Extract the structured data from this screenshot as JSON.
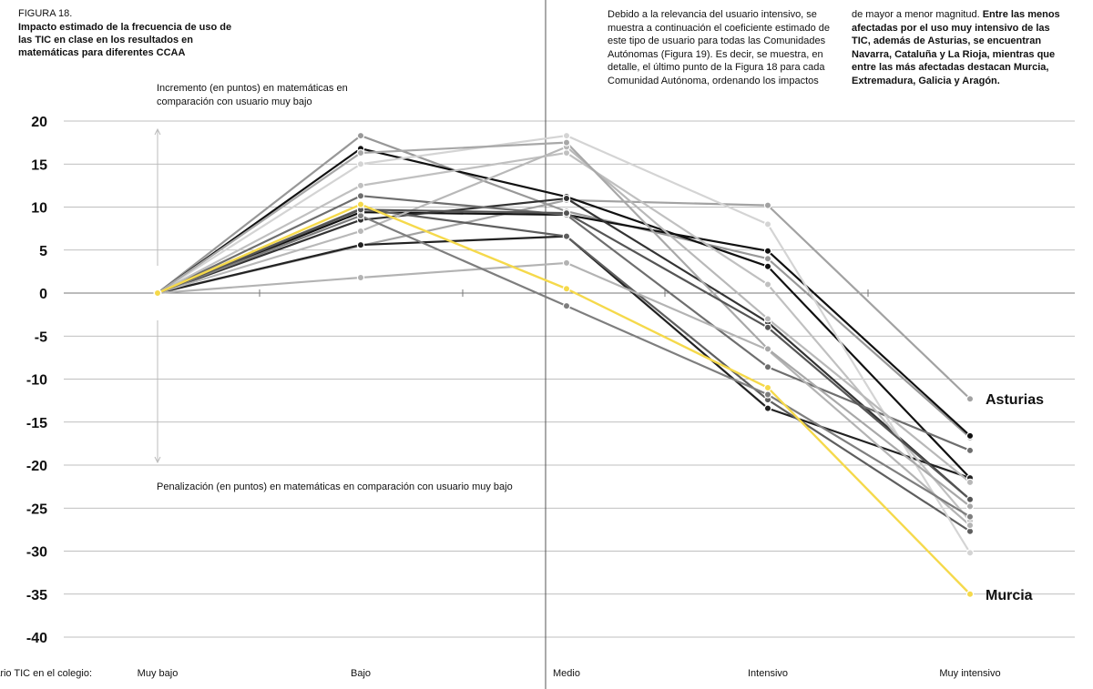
{
  "figure": {
    "label": "FIGURA 18.",
    "title": "Impacto estimado de la frecuencia de uso de las TIC en clase en los resultados en matemáticas para diferentes CCAA"
  },
  "annotations": {
    "increment": "Incremento (en puntos) en matemáticas en comparación con usuario muy bajo",
    "penalty": "Penalización (en puntos) en matemáticas en comparación con usuario muy bajo"
  },
  "text": {
    "para1": "Debido a la relevancia del usuario intensivo, se muestra a continuación el coeficiente estimado de este tipo de usuario para todas las Comunidades Autónomas (Figura 19). Es decir, se muestra, en detalle, el último punto de la Figura 18 para cada Comunidad Autónoma, ordenando los impactos",
    "para2_lead": "de mayor a menor magnitud. ",
    "para2_bold": "Entre las menos afectadas por el uso muy intensivo de las TIC, además de Asturias, se encuentran Navarra, Cataluña y La Rioja, mientras que entre las más afectadas destacan Murcia, Extremadura, Galicia y Aragón."
  },
  "colors": {
    "highlight": "#f5d94b",
    "axis": "#777777",
    "grid": "#aaaaaa"
  },
  "chart_data": {
    "type": "line",
    "title": "Impacto estimado de la frecuencia de uso de las TIC en clase en los resultados en matemáticas para diferentes CCAA",
    "xlabel": "uario TIC en el colegio:",
    "ylabel": "",
    "categories": [
      "Muy bajo",
      "Bajo",
      "Medio",
      "Intensivo",
      "Muy intensivo"
    ],
    "ylim": [
      -40,
      20
    ],
    "yticks": [
      20,
      15,
      10,
      5,
      0,
      -5,
      -10,
      -15,
      -20,
      -25,
      -30,
      -35,
      -40
    ],
    "grid": true,
    "series": [
      {
        "name": "Asturias",
        "color": "#a2a2a2",
        "label": true,
        "values": [
          0,
          5.5,
          10.8,
          10.2,
          -12.3
        ]
      },
      {
        "name": "Murcia",
        "color": "#f5d94b",
        "label": true,
        "highlight": true,
        "values": [
          0,
          10.3,
          0.5,
          -11.0,
          -35.0
        ]
      },
      {
        "name": "",
        "color": "#989898",
        "values": [
          0,
          18.3,
          9.5,
          4.0,
          -16.8
        ]
      },
      {
        "name": "",
        "color": "#111111",
        "values": [
          0,
          16.8,
          11.2,
          3.1,
          -21.5
        ]
      },
      {
        "name": "",
        "color": "#111111",
        "values": [
          0,
          9.4,
          9.1,
          4.9,
          -16.6
        ]
      },
      {
        "name": "",
        "color": "#333333",
        "values": [
          0,
          8.5,
          11.0,
          -3.4,
          -24.0
        ]
      },
      {
        "name": "",
        "color": "#222222",
        "values": [
          0,
          5.6,
          6.6,
          -13.4,
          -21.5
        ]
      },
      {
        "name": "",
        "color": "#6e6e6e",
        "values": [
          0,
          11.3,
          9.1,
          -8.6,
          -18.3
        ]
      },
      {
        "name": "",
        "color": "#5e5e5e",
        "values": [
          0,
          9.8,
          6.6,
          -12.4,
          -27.7
        ]
      },
      {
        "name": "",
        "color": "#d4d4d4",
        "values": [
          0,
          15.0,
          18.3,
          8.0,
          -30.2
        ]
      },
      {
        "name": "",
        "color": "#c0c0c0",
        "values": [
          0,
          12.5,
          16.3,
          1.0,
          -26.5
        ]
      },
      {
        "name": "",
        "color": "#b8b8b8",
        "values": [
          0,
          7.2,
          17.0,
          -3.0,
          -22.0
        ]
      },
      {
        "name": "",
        "color": "#b3b3b3",
        "values": [
          0,
          1.8,
          3.5,
          -6.6,
          -27.0
        ]
      },
      {
        "name": "",
        "color": "#7e7e7e",
        "values": [
          0,
          9.0,
          -1.5,
          -11.8,
          -26.0
        ]
      },
      {
        "name": "",
        "color": "#a8a8a8",
        "values": [
          0,
          16.3,
          17.5,
          -6.5,
          -24.8
        ]
      },
      {
        "name": "",
        "color": "#555555",
        "values": [
          0,
          9.7,
          9.3,
          -4.0,
          -24.0
        ]
      }
    ]
  }
}
